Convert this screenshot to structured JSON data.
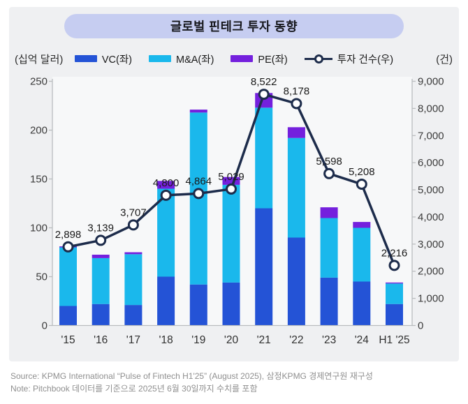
{
  "title": "글로벌 핀테크 투자 동향",
  "axis_units": {
    "left": "(십억 달러)",
    "right": "(건)"
  },
  "legend": [
    {
      "label": "VC(좌)",
      "color": "#2453d6",
      "type": "swatch"
    },
    {
      "label": "M&A(좌)",
      "color": "#1ab8ec",
      "type": "swatch"
    },
    {
      "label": "PE(좌)",
      "color": "#7420dd",
      "type": "swatch"
    },
    {
      "label": "투자 건수(우)",
      "color": "#1d2c4b",
      "type": "line-marker"
    }
  ],
  "chart_data": {
    "type": "bar",
    "subtype": "stacked-bars-with-line-overlay",
    "title": "글로벌 핀테크 투자 동향",
    "categories": [
      "'15",
      "'16",
      "'17",
      "'18",
      "'19",
      "'20",
      "'21",
      "'22",
      "'23",
      "'24",
      "H1 '25"
    ],
    "series": [
      {
        "name": "VC(좌)",
        "type": "bar",
        "axis": "left",
        "color": "#2453d6",
        "values": [
          20,
          22,
          21,
          50,
          42,
          44,
          120,
          90,
          49,
          45,
          22
        ]
      },
      {
        "name": "M&A(좌)",
        "type": "bar",
        "axis": "left",
        "color": "#1ab8ec",
        "values": [
          60,
          47,
          52,
          90,
          176,
          100,
          103,
          102,
          61,
          55,
          21
        ]
      },
      {
        "name": "PE(좌)",
        "type": "bar",
        "axis": "left",
        "color": "#7420dd",
        "values": [
          1,
          3.5,
          2,
          8,
          3,
          8,
          15,
          11,
          11,
          6,
          1
        ]
      },
      {
        "name": "투자 건수(우)",
        "type": "line",
        "axis": "right",
        "color": "#1d2c4b",
        "values": [
          2898,
          3139,
          3707,
          4800,
          4864,
          5029,
          8522,
          8178,
          5598,
          5208,
          2216
        ],
        "labels": [
          "2,898",
          "3,139",
          "3,707",
          "4,800",
          "4,864",
          "5,029",
          "8,522",
          "8,178",
          "5,598",
          "5,208",
          "2,216"
        ]
      }
    ],
    "left_axis": {
      "label": "(십억 달러)",
      "min": 0,
      "max": 250,
      "tick_values": [
        0,
        50,
        100,
        150,
        200,
        250
      ],
      "tick_labels": [
        "0",
        "50",
        "100",
        "150",
        "200",
        "250"
      ]
    },
    "right_axis": {
      "label": "(건)",
      "min": 0,
      "max": 9000,
      "tick_values": [
        0,
        1000,
        2000,
        3000,
        4000,
        5000,
        6000,
        7000,
        8000,
        9000
      ],
      "tick_labels": [
        "0",
        "1,000",
        "2,000",
        "3,000",
        "4,000",
        "5,000",
        "6,000",
        "7,000",
        "8,000",
        "9,000"
      ]
    },
    "grid": false,
    "legend_position": "top"
  },
  "footer": {
    "source": "Source: KPMG International “Pulse of Fintech H1'25” (August 2025), 삼정KPMG 경제연구원 재구성",
    "note": "Note: Pitchbook 데이터를 기준으로 2025년 6월 30일까지 수치를 포함"
  },
  "colors": {
    "card_bg": "#eff0f2",
    "plot_bg": "#f7f8f9",
    "title_band": "#c6cdf1",
    "vc": "#2453d6",
    "ma": "#1ab8ec",
    "pe": "#7420dd",
    "line": "#1d2c4b",
    "axis": "#babdbf",
    "tick_text": "#3c3c3c",
    "data_label": "#1a1a1a"
  }
}
